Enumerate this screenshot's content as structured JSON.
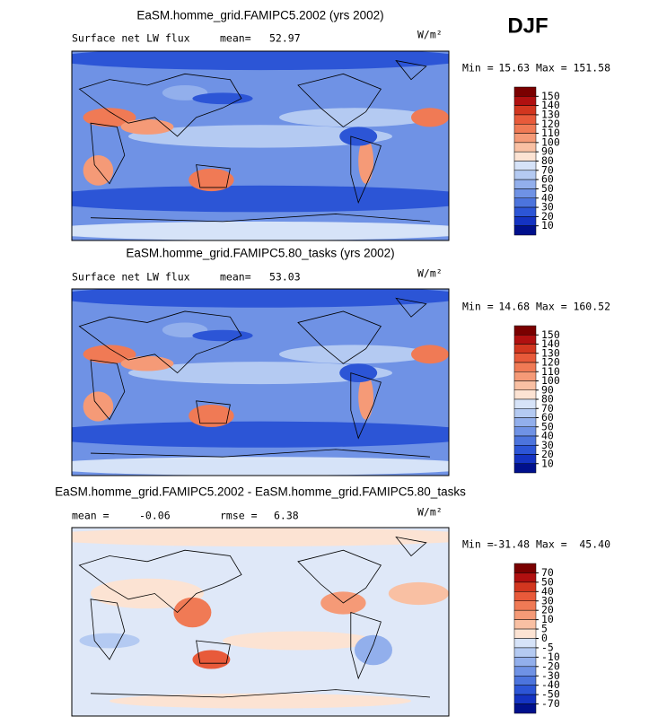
{
  "season": "DJF",
  "panels": [
    {
      "title": "EaSM.homme_grid.FAMIPC5.2002 (yrs 2002)",
      "variable": "Surface net LW flux",
      "stat1_label": "mean=",
      "stat1_value": "52.97",
      "units": "W/m²",
      "min_label": "Min =",
      "min_value": "15.63",
      "max_label": "Max =",
      "max_value": "151.58",
      "levels": [
        150,
        140,
        130,
        120,
        110,
        100,
        90,
        80,
        70,
        60,
        50,
        40,
        30,
        20,
        10
      ],
      "colors": [
        "#7a0000",
        "#b01010",
        "#d2361f",
        "#e85a3a",
        "#f07a55",
        "#f59a77",
        "#f9c0a3",
        "#fce3d3",
        "#d6e3f8",
        "#b4caf2",
        "#92afec",
        "#6f92e5",
        "#4c74dd",
        "#2c55d6",
        "#1433c2",
        "#00108c"
      ]
    },
    {
      "title": "EaSM.homme_grid.FAMIPC5.80_tasks (yrs 2002)",
      "variable": "Surface net LW flux",
      "stat1_label": "mean=",
      "stat1_value": "53.03",
      "units": "W/m²",
      "min_label": "Min =",
      "min_value": "14.68",
      "max_label": "Max =",
      "max_value": "160.52",
      "levels": [
        150,
        140,
        130,
        120,
        110,
        100,
        90,
        80,
        70,
        60,
        50,
        40,
        30,
        20,
        10
      ],
      "colors": [
        "#7a0000",
        "#b01010",
        "#d2361f",
        "#e85a3a",
        "#f07a55",
        "#f59a77",
        "#f9c0a3",
        "#fce3d3",
        "#d6e3f8",
        "#b4caf2",
        "#92afec",
        "#6f92e5",
        "#4c74dd",
        "#2c55d6",
        "#1433c2",
        "#00108c"
      ]
    },
    {
      "title": "EaSM.homme_grid.FAMIPC5.2002 - EaSM.homme_grid.FAMIPC5.80_tasks",
      "stat1_label": "mean =",
      "stat1_value": "-0.06",
      "stat2_label": "rmse =",
      "stat2_value": "6.38",
      "units": "W/m²",
      "min_label": "Min =",
      "min_value": "-31.48",
      "max_label": "Max =",
      "max_value": "45.40",
      "levels": [
        70,
        50,
        40,
        30,
        20,
        10,
        5,
        0,
        -5,
        -10,
        -20,
        -30,
        -40,
        -50,
        -70
      ],
      "colors": [
        "#7a0000",
        "#b01010",
        "#d2361f",
        "#e85a3a",
        "#f07a55",
        "#f59a77",
        "#f9c0a3",
        "#fce3d3",
        "#d6e3f8",
        "#b4caf2",
        "#92afec",
        "#6f92e5",
        "#4c74dd",
        "#2c55d6",
        "#1433c2",
        "#00108c"
      ]
    }
  ]
}
